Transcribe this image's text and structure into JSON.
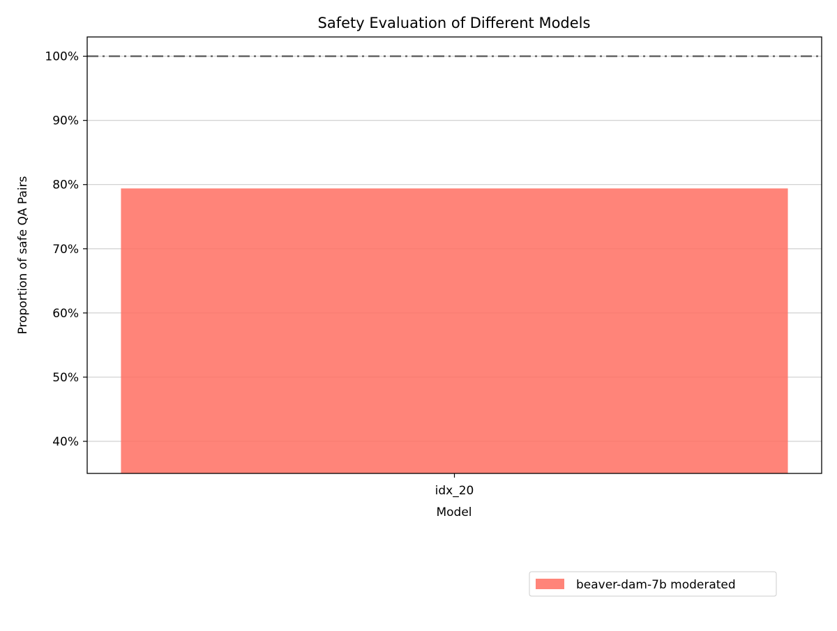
{
  "chart_data": {
    "type": "bar",
    "title": "Safety Evaluation of Different Models",
    "xlabel": "Model",
    "ylabel": "Proportion of safe QA Pairs",
    "categories": [
      "idx_20"
    ],
    "series": [
      {
        "name": "beaver-dam-7b moderated",
        "values": [
          79.4
        ],
        "color": "#ff6f61"
      }
    ],
    "ylim": [
      35,
      103
    ],
    "yticks": [
      40,
      50,
      60,
      70,
      80,
      90,
      100
    ],
    "ytick_labels": [
      "40%",
      "50%",
      "60%",
      "70%",
      "80%",
      "90%",
      "100%"
    ],
    "reference_line": {
      "value": 100,
      "style": "dash-dot",
      "color": "#666666"
    },
    "grid": "y",
    "legend_position": "lower-right-outside"
  }
}
